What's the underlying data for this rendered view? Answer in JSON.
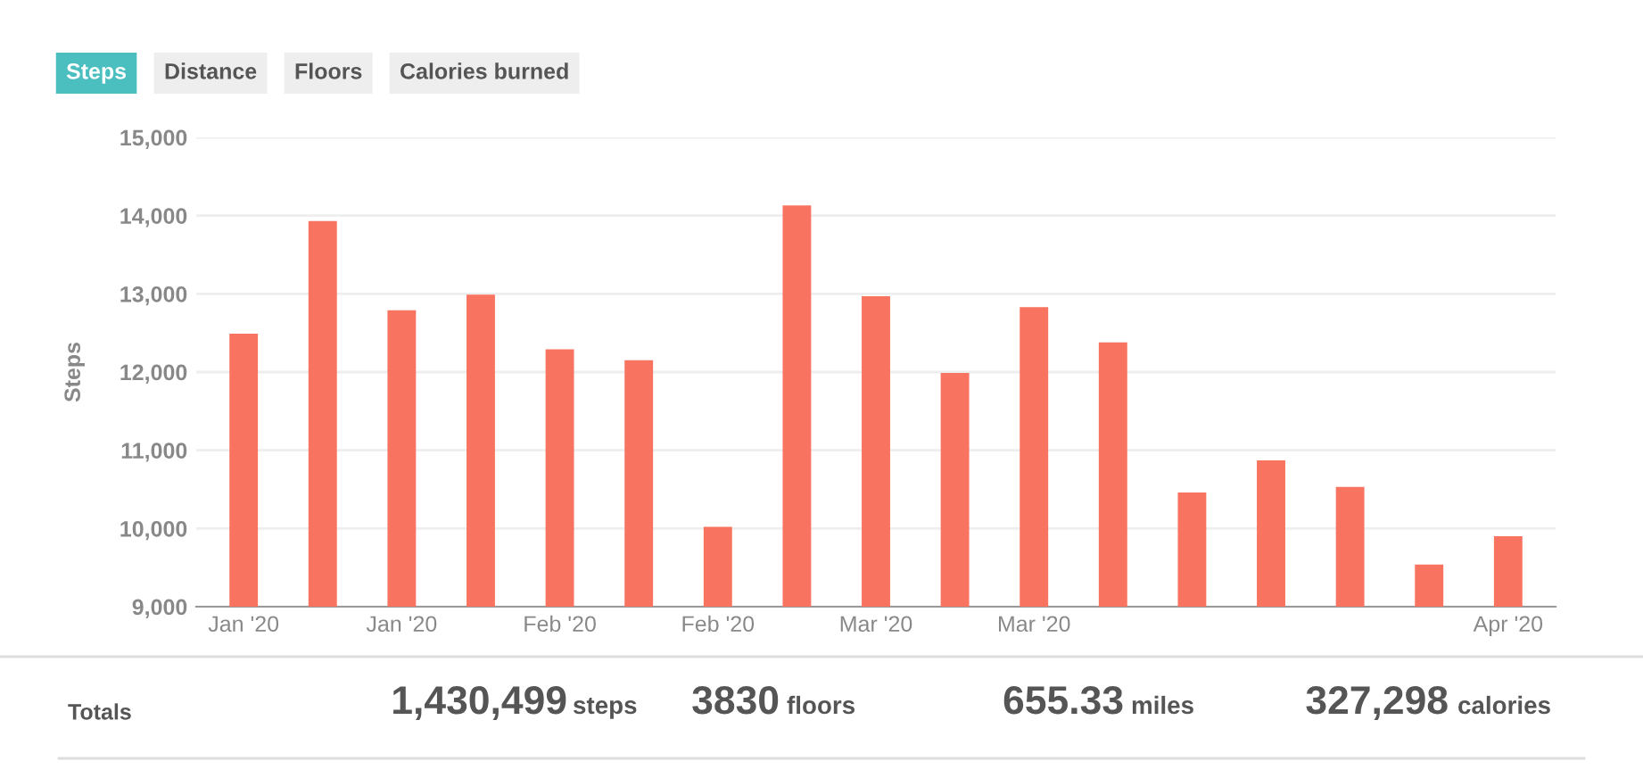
{
  "chart_data": {
    "type": "bar",
    "ylabel": "Steps",
    "categories": [
      "Jan '20",
      null,
      "Jan '20",
      null,
      "Feb '20",
      null,
      "Feb '20",
      null,
      "Mar '20",
      null,
      "Mar '20",
      null,
      null,
      null,
      null,
      null,
      "Apr '20"
    ],
    "series": [
      {
        "color": "#f87461",
        "values": [
          12490,
          13930,
          12790,
          12990,
          12290,
          12150,
          10020,
          14130,
          12970,
          11990,
          12830,
          12380,
          10460,
          10870,
          10530,
          9540,
          9900
        ]
      }
    ],
    "ylim": [
      9000,
      15000
    ],
    "yticks": [
      {
        "value": 9000,
        "label": "9,000"
      },
      {
        "value": 10000,
        "label": "10,000"
      },
      {
        "value": 11000,
        "label": "11,000"
      },
      {
        "value": 12000,
        "label": "12,000"
      },
      {
        "value": 13000,
        "label": "13,000"
      },
      {
        "value": 14000,
        "label": "14,000"
      },
      {
        "value": 15000,
        "label": "15,000"
      }
    ],
    "grid": "y",
    "annotations": [
      "Steps",
      "Distance",
      "Floors",
      "Calories burned",
      "Totals",
      "1,430,499",
      "steps",
      "3830",
      "floors",
      "655.33",
      "miles",
      "327,298",
      "calories"
    ]
  }
}
